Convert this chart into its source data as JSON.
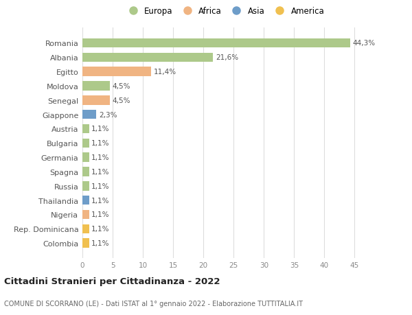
{
  "categories": [
    "Romania",
    "Albania",
    "Egitto",
    "Moldova",
    "Senegal",
    "Giappone",
    "Austria",
    "Bulgaria",
    "Germania",
    "Spagna",
    "Russia",
    "Thailandia",
    "Nigeria",
    "Rep. Dominicana",
    "Colombia"
  ],
  "values": [
    44.3,
    21.6,
    11.4,
    4.5,
    4.5,
    2.3,
    1.1,
    1.1,
    1.1,
    1.1,
    1.1,
    1.1,
    1.1,
    1.1,
    1.1
  ],
  "labels": [
    "44,3%",
    "21,6%",
    "11,4%",
    "4,5%",
    "4,5%",
    "2,3%",
    "1,1%",
    "1,1%",
    "1,1%",
    "1,1%",
    "1,1%",
    "1,1%",
    "1,1%",
    "1,1%",
    "1,1%"
  ],
  "colors": [
    "#adc98a",
    "#adc98a",
    "#f0b482",
    "#adc98a",
    "#f0b482",
    "#6e9dc9",
    "#adc98a",
    "#adc98a",
    "#adc98a",
    "#adc98a",
    "#adc98a",
    "#6e9dc9",
    "#f0b482",
    "#f0c050",
    "#f0c050"
  ],
  "legend_labels": [
    "Europa",
    "Africa",
    "Asia",
    "America"
  ],
  "legend_colors": [
    "#adc98a",
    "#f0b482",
    "#6e9dc9",
    "#f0c050"
  ],
  "title": "Cittadini Stranieri per Cittadinanza - 2022",
  "subtitle": "COMUNE DI SCORRANO (LE) - Dati ISTAT al 1° gennaio 2022 - Elaborazione TUTTITALIA.IT",
  "xlim": [
    0,
    47
  ],
  "xticks": [
    0,
    5,
    10,
    15,
    20,
    25,
    30,
    35,
    40,
    45
  ],
  "bg_color": "#ffffff",
  "grid_color": "#dddddd"
}
